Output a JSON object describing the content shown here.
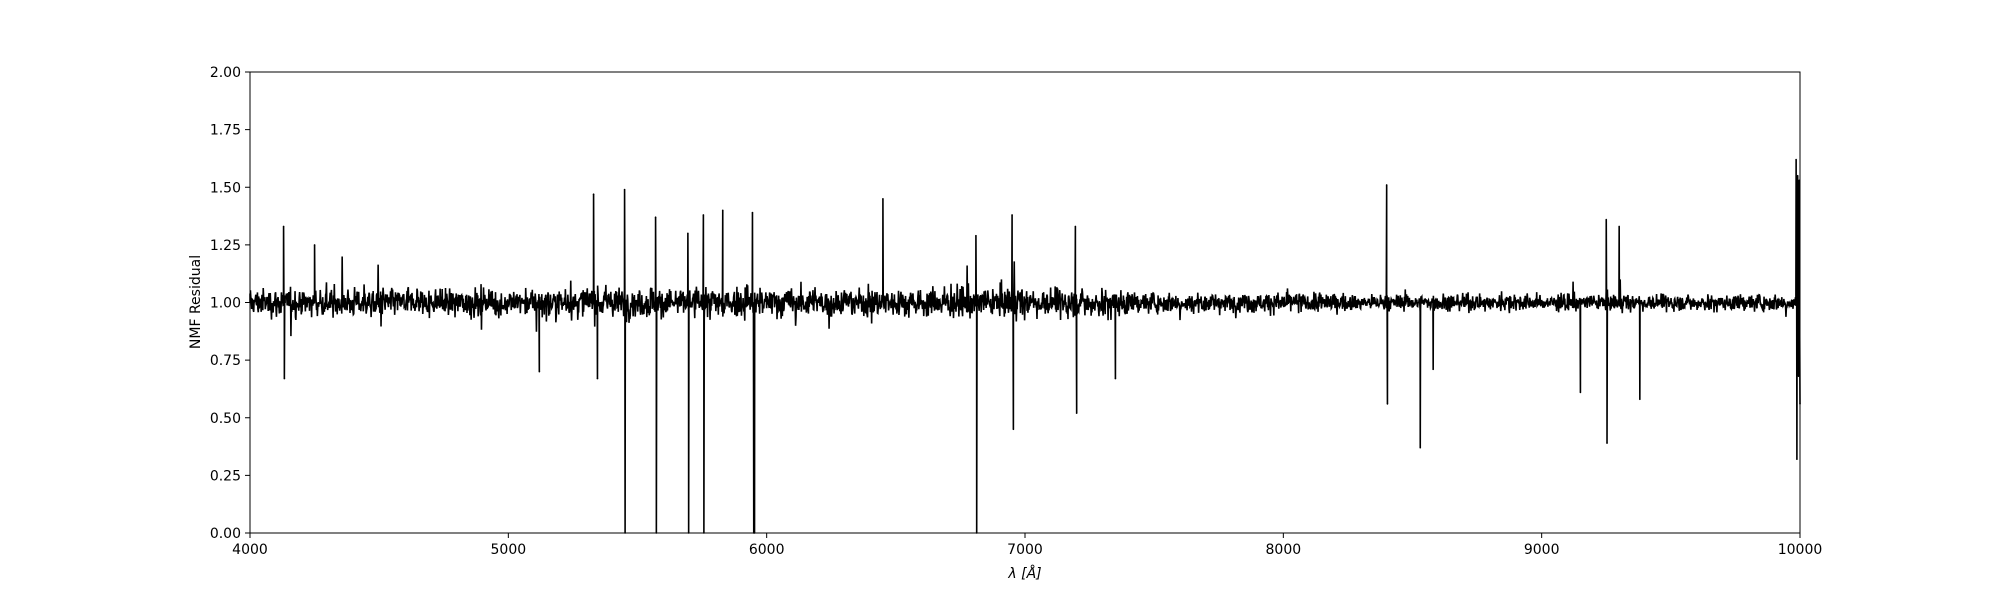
{
  "chart_data": {
    "type": "line",
    "title": "",
    "xlabel": "λ [Å]",
    "ylabel": "NMF Residual",
    "xlim": [
      4000,
      10000
    ],
    "ylim": [
      0.0,
      2.0
    ],
    "x_ticks": [
      4000,
      5000,
      6000,
      7000,
      8000,
      9000,
      10000
    ],
    "x_tick_labels": [
      "4000",
      "5000",
      "6000",
      "7000",
      "8000",
      "9000",
      "10000"
    ],
    "y_ticks": [
      0.0,
      0.25,
      0.5,
      0.75,
      1.0,
      1.25,
      1.5,
      1.75,
      2.0
    ],
    "y_tick_labels": [
      "0.00",
      "0.25",
      "0.50",
      "0.75",
      "1.00",
      "1.25",
      "1.50",
      "1.75",
      "2.00"
    ],
    "grid": false,
    "legend": "none",
    "series": [
      {
        "color": "#000000",
        "x": [
          4000,
          4130,
          4133,
          4136,
          4250,
          5120,
          5330,
          5345,
          5350,
          5450,
          5452,
          5454,
          5570,
          5573,
          5576,
          5695,
          5698,
          5701,
          5755,
          5757,
          5760,
          5830,
          5945,
          5950,
          5953,
          5956,
          6450,
          6810,
          6813,
          6816,
          6950,
          6955,
          7195,
          7200,
          7350,
          8400,
          8403,
          8406,
          8530,
          8533,
          8580,
          9150,
          9250,
          9253,
          9300,
          9380,
          9985,
          9988,
          9991,
          9994,
          9997,
          10000
        ],
        "y": [
          1.0,
          1.33,
          0.67,
          1.0,
          1.25,
          0.7,
          1.47,
          0.67,
          1.0,
          1.49,
          0.0,
          1.0,
          1.37,
          0.0,
          1.0,
          1.3,
          0.0,
          1.0,
          1.38,
          0.0,
          1.0,
          1.4,
          1.39,
          0.0,
          0.0,
          1.0,
          1.45,
          1.29,
          0.0,
          1.0,
          1.38,
          0.45,
          1.33,
          0.52,
          0.67,
          1.51,
          0.56,
          1.0,
          0.37,
          1.0,
          0.71,
          0.61,
          1.36,
          0.39,
          1.33,
          0.58,
          1.62,
          0.32,
          1.55,
          0.68,
          1.53,
          0.56
        ]
      }
    ]
  }
}
